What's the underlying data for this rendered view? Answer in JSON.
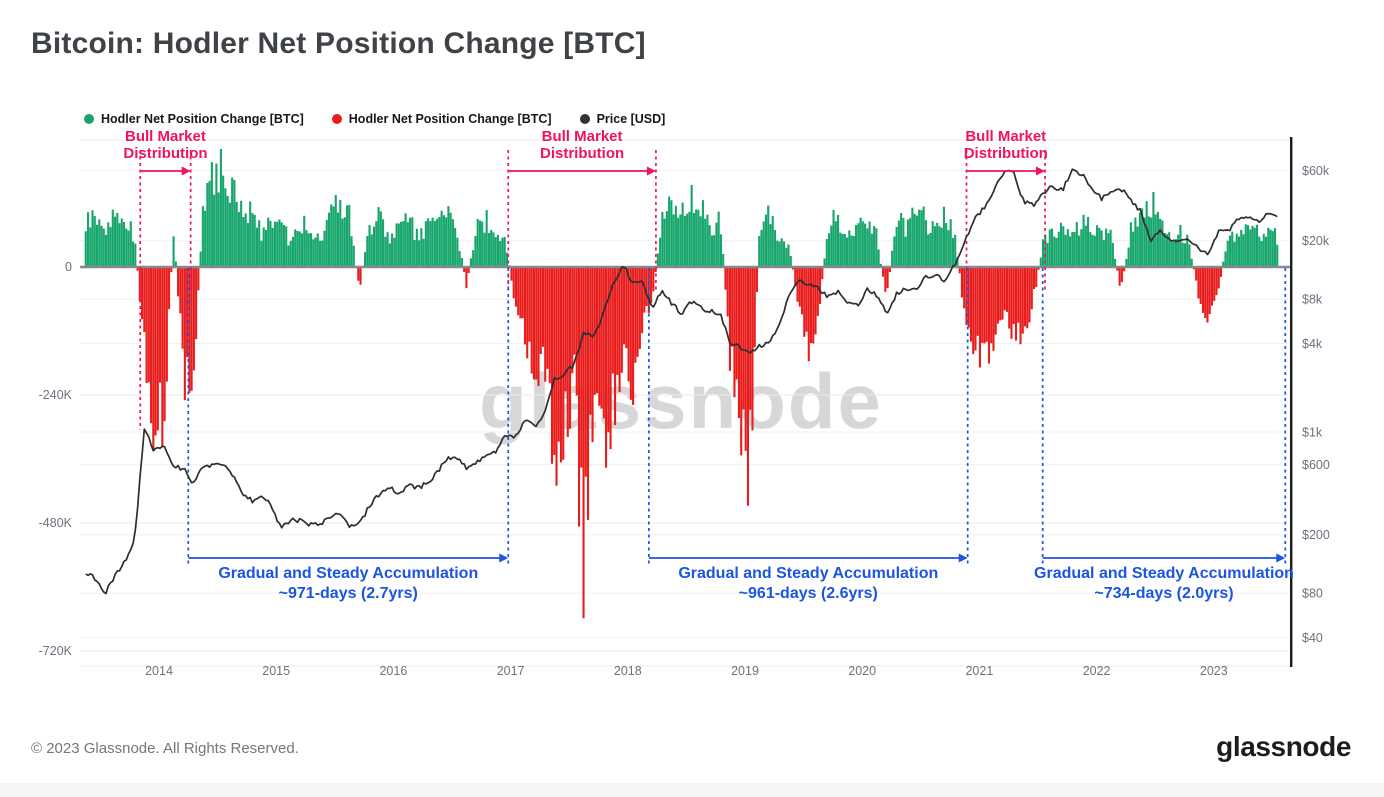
{
  "header": {
    "title": "Bitcoin: Hodler Net Position Change [BTC]"
  },
  "legend": {
    "items": [
      {
        "label": "Hodler Net Position Change [BTC]",
        "color": "#16a56a"
      },
      {
        "label": "Hodler Net Position Change [BTC]",
        "color": "#e91c1c"
      },
      {
        "label": "Price [USD]",
        "color": "#333333"
      }
    ]
  },
  "chart": {
    "watermark": "glassnode"
  },
  "annotations": {
    "distribution_color": "#f0135f",
    "accumulation_color": "#1b55e0",
    "distributions": [
      {
        "label_line1": "Bull Market",
        "label_line2": "Distribution",
        "start": 2013.84,
        "end": 2014.27
      },
      {
        "label_line1": "Bull Market",
        "label_line2": "Distribution",
        "start": 2016.98,
        "end": 2018.24
      },
      {
        "label_line1": "Bull Market",
        "label_line2": "Distribution",
        "start": 2020.89,
        "end": 2021.56
      }
    ],
    "accumulations": [
      {
        "label": "Gradual and Steady Accumulation",
        "duration": "~971-days (2.7yrs)",
        "start": 2014.25,
        "end": 2016.98
      },
      {
        "label": "Gradual and Steady Accumulation",
        "duration": "~961-days (2.6yrs)",
        "start": 2018.18,
        "end": 2020.9
      },
      {
        "label": "Gradual and Steady Accumulation",
        "duration": "~734-days (2.0yrs)",
        "start": 2021.54,
        "end": 2023.61
      }
    ]
  },
  "footer": {
    "copyright": "© 2023 Glassnode. All Rights Reserved.",
    "logo": "glassnode"
  },
  "chart_data": {
    "type": "combo",
    "title": "Bitcoin: Hodler Net Position Change [BTC]",
    "start_month": "2013-05",
    "interval": "monthly",
    "legend_position": "top-left",
    "grid": true,
    "series": [
      {
        "name": "Hodler Net Position Change [BTC]",
        "type": "bar",
        "unit": "BTC",
        "color_positive": "#16a56a",
        "color_negative": "#e91c1c",
        "values": [
          75000,
          95000,
          65000,
          105000,
          85000,
          55000,
          -150000,
          -300000,
          -270000,
          70000,
          -190000,
          -270000,
          130000,
          170000,
          175000,
          140000,
          95000,
          115000,
          65000,
          95000,
          75000,
          45000,
          85000,
          60000,
          55000,
          95000,
          115000,
          95000,
          -45000,
          75000,
          90000,
          55000,
          65000,
          85000,
          55000,
          75000,
          95000,
          115000,
          65000,
          -35000,
          75000,
          85000,
          55000,
          45000,
          -70000,
          -130000,
          -240000,
          -160000,
          -330000,
          -280000,
          -200000,
          -550000,
          -230000,
          -320000,
          -250000,
          -190000,
          -210000,
          -110000,
          -60000,
          85000,
          115000,
          95000,
          135000,
          105000,
          65000,
          85000,
          -160000,
          -300000,
          -360000,
          65000,
          95000,
          45000,
          40000,
          -70000,
          -145000,
          -95000,
          75000,
          95000,
          55000,
          85000,
          75000,
          55000,
          -65000,
          95000,
          65000,
          105000,
          85000,
          65000,
          95000,
          55000,
          -85000,
          -140000,
          -155000,
          -145000,
          -85000,
          -115000,
          -145000,
          -65000,
          45000,
          75000,
          65000,
          55000,
          85000,
          75000,
          65000,
          55000,
          -45000,
          65000,
          95000,
          125000,
          75000,
          55000,
          65000,
          45000,
          -60000,
          -90000,
          -40000,
          65000,
          55000,
          75000,
          65000,
          60000,
          55000
        ]
      },
      {
        "name": "Price [USD]",
        "type": "line",
        "unit": "USD",
        "scale": "log",
        "color": "#2e2e2e",
        "values": [
          110,
          100,
          80,
          105,
          130,
          185,
          1050,
          750,
          800,
          580,
          565,
          450,
          585,
          600,
          620,
          505,
          390,
          340,
          370,
          320,
          220,
          250,
          250,
          235,
          235,
          260,
          285,
          230,
          235,
          310,
          375,
          430,
          380,
          435,
          415,
          450,
          530,
          670,
          655,
          575,
          610,
          700,
          745,
          960,
          920,
          1190,
          1080,
          1350,
          2300,
          2500,
          2870,
          4700,
          4350,
          6450,
          10000,
          14100,
          10200,
          10300,
          7000,
          9250,
          7500,
          6400,
          7750,
          7000,
          6600,
          6300,
          4050,
          3750,
          3450,
          3850,
          4100,
          5350,
          8550,
          10800,
          10000,
          9600,
          8300,
          9150,
          7550,
          7200,
          9350,
          8550,
          6450,
          8650,
          9450,
          9150,
          11350,
          11650,
          10800,
          13800,
          19700,
          29000,
          33100,
          45200,
          58800,
          57800,
          37300,
          35000,
          41500,
          47150,
          43800,
          61300,
          57000,
          46200,
          38500,
          43200,
          45500,
          37650,
          31800,
          19950,
          23300,
          20050,
          19400,
          20500,
          17150,
          16550,
          23100,
          23150,
          28500,
          29250,
          27200,
          30450,
          29300
        ]
      }
    ],
    "axes": {
      "left": {
        "label": "Hodler Net Position Change [BTC]",
        "range": [
          -760000,
          240000
        ],
        "ticks": [
          {
            "label": "0",
            "value": 0
          },
          {
            "label": "-240K",
            "value": -240000
          },
          {
            "label": "-480K",
            "value": -480000
          },
          {
            "label": "-720K",
            "value": -720000
          }
        ]
      },
      "right": {
        "label": "Price [USD]",
        "scale": "log",
        "ticks": [
          {
            "label": "$60k",
            "value": 60000
          },
          {
            "label": "$20k",
            "value": 20000
          },
          {
            "label": "$8k",
            "value": 8000
          },
          {
            "label": "$4k",
            "value": 4000
          },
          {
            "label": "$1k",
            "value": 1000
          },
          {
            "label": "$600",
            "value": 600
          },
          {
            "label": "$200",
            "value": 200
          },
          {
            "label": "$80",
            "value": 80
          },
          {
            "label": "$40",
            "value": 40
          }
        ]
      },
      "x": {
        "ticks": [
          "2014",
          "2015",
          "2016",
          "2017",
          "2018",
          "2019",
          "2020",
          "2021",
          "2022",
          "2023"
        ]
      }
    }
  }
}
